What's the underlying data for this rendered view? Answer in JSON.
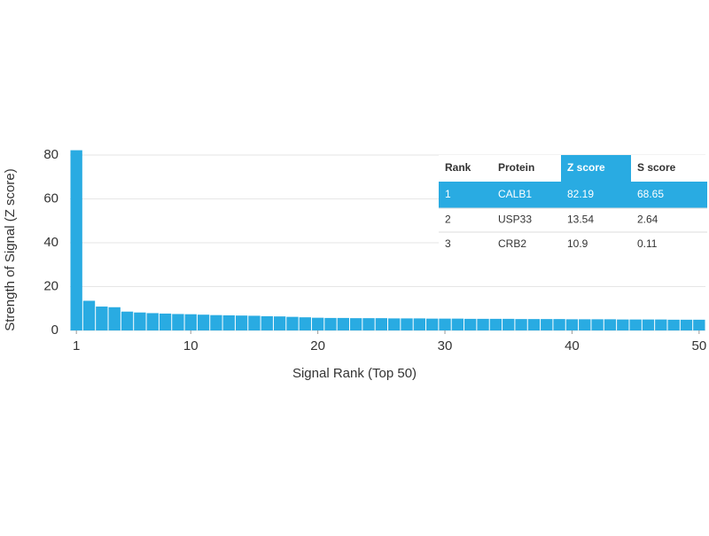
{
  "chart_data": {
    "type": "bar",
    "ylabel": "Strength of Signal (Z score)",
    "xlabel": "Signal Rank (Top 50)",
    "color": "#29abe2",
    "grid": true,
    "x": [
      1,
      2,
      3,
      4,
      5,
      6,
      7,
      8,
      9,
      10,
      11,
      12,
      13,
      14,
      15,
      16,
      17,
      18,
      19,
      20,
      21,
      22,
      23,
      24,
      25,
      26,
      27,
      28,
      29,
      30,
      31,
      32,
      33,
      34,
      35,
      36,
      37,
      38,
      39,
      40,
      41,
      42,
      43,
      44,
      45,
      46,
      47,
      48,
      49,
      50
    ],
    "values": [
      82.19,
      13.54,
      10.9,
      10.6,
      8.6,
      8.2,
      7.9,
      7.7,
      7.5,
      7.4,
      7.2,
      7.0,
      6.9,
      6.8,
      6.7,
      6.5,
      6.4,
      6.2,
      6.0,
      5.8,
      5.7,
      5.7,
      5.6,
      5.6,
      5.6,
      5.5,
      5.5,
      5.5,
      5.4,
      5.4,
      5.4,
      5.3,
      5.3,
      5.3,
      5.3,
      5.2,
      5.2,
      5.2,
      5.2,
      5.1,
      5.1,
      5.1,
      5.1,
      5.0,
      5.0,
      5.0,
      5.0,
      4.9,
      4.9,
      4.9
    ],
    "xlim": [
      0.5,
      50.5
    ],
    "xticks": [
      1,
      10,
      20,
      30,
      40,
      50
    ],
    "ylim": [
      0,
      80
    ],
    "yticks": [
      0,
      20,
      40,
      60,
      80
    ],
    "table": {
      "columns": [
        "Rank",
        "Protein",
        "Z score",
        "S score"
      ],
      "rows": [
        [
          1,
          "CALB1",
          82.19,
          68.65
        ],
        [
          2,
          "USP33",
          13.54,
          2.64
        ],
        [
          3,
          "CRB2",
          10.9,
          0.11
        ]
      ],
      "highlight_row": 0,
      "highlight_column": 2,
      "highlight_color": "#29abe2"
    }
  }
}
